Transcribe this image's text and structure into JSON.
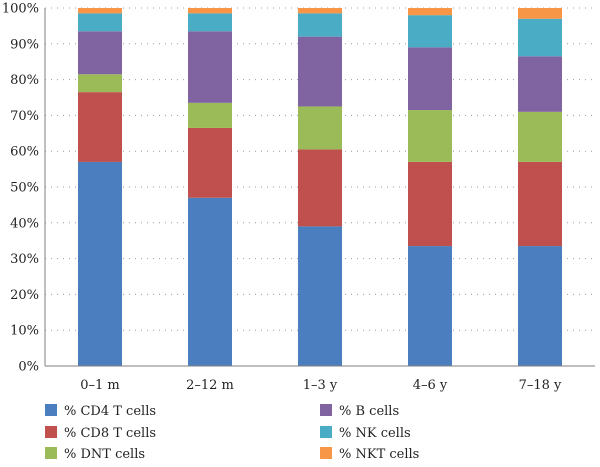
{
  "chart_data": {
    "type": "bar",
    "stacked": true,
    "percent": true,
    "categories": [
      "0–1 m",
      "2–12 m",
      "1–3 y",
      "4–6 y",
      "7–18 y"
    ],
    "series": [
      {
        "name": "% CD4 T cells",
        "color": "#4a7ebf",
        "values": [
          57,
          47,
          39,
          33.5,
          33.5
        ]
      },
      {
        "name": "% CD8 T cells",
        "color": "#c0504d",
        "values": [
          19.5,
          19.5,
          21.5,
          23.5,
          23.5
        ]
      },
      {
        "name": "% DNT cells",
        "color": "#9bbb59",
        "values": [
          5,
          7,
          12,
          14.5,
          14
        ]
      },
      {
        "name": "% B cells",
        "color": "#8064a2",
        "values": [
          12,
          20,
          19.5,
          17.5,
          15.5
        ]
      },
      {
        "name": "% NK cells",
        "color": "#4bacc6",
        "values": [
          5,
          5,
          6.5,
          9,
          10.5
        ]
      },
      {
        "name": "% NKT cells",
        "color": "#f79646",
        "values": [
          1.5,
          1.5,
          1.5,
          2,
          3
        ]
      }
    ],
    "yticks": [
      "0%",
      "10%",
      "20%",
      "30%",
      "40%",
      "50%",
      "60%",
      "70%",
      "80%",
      "90%",
      "100%"
    ],
    "ylim": [
      0,
      100
    ],
    "grid": true,
    "legend_position": "bottom"
  }
}
